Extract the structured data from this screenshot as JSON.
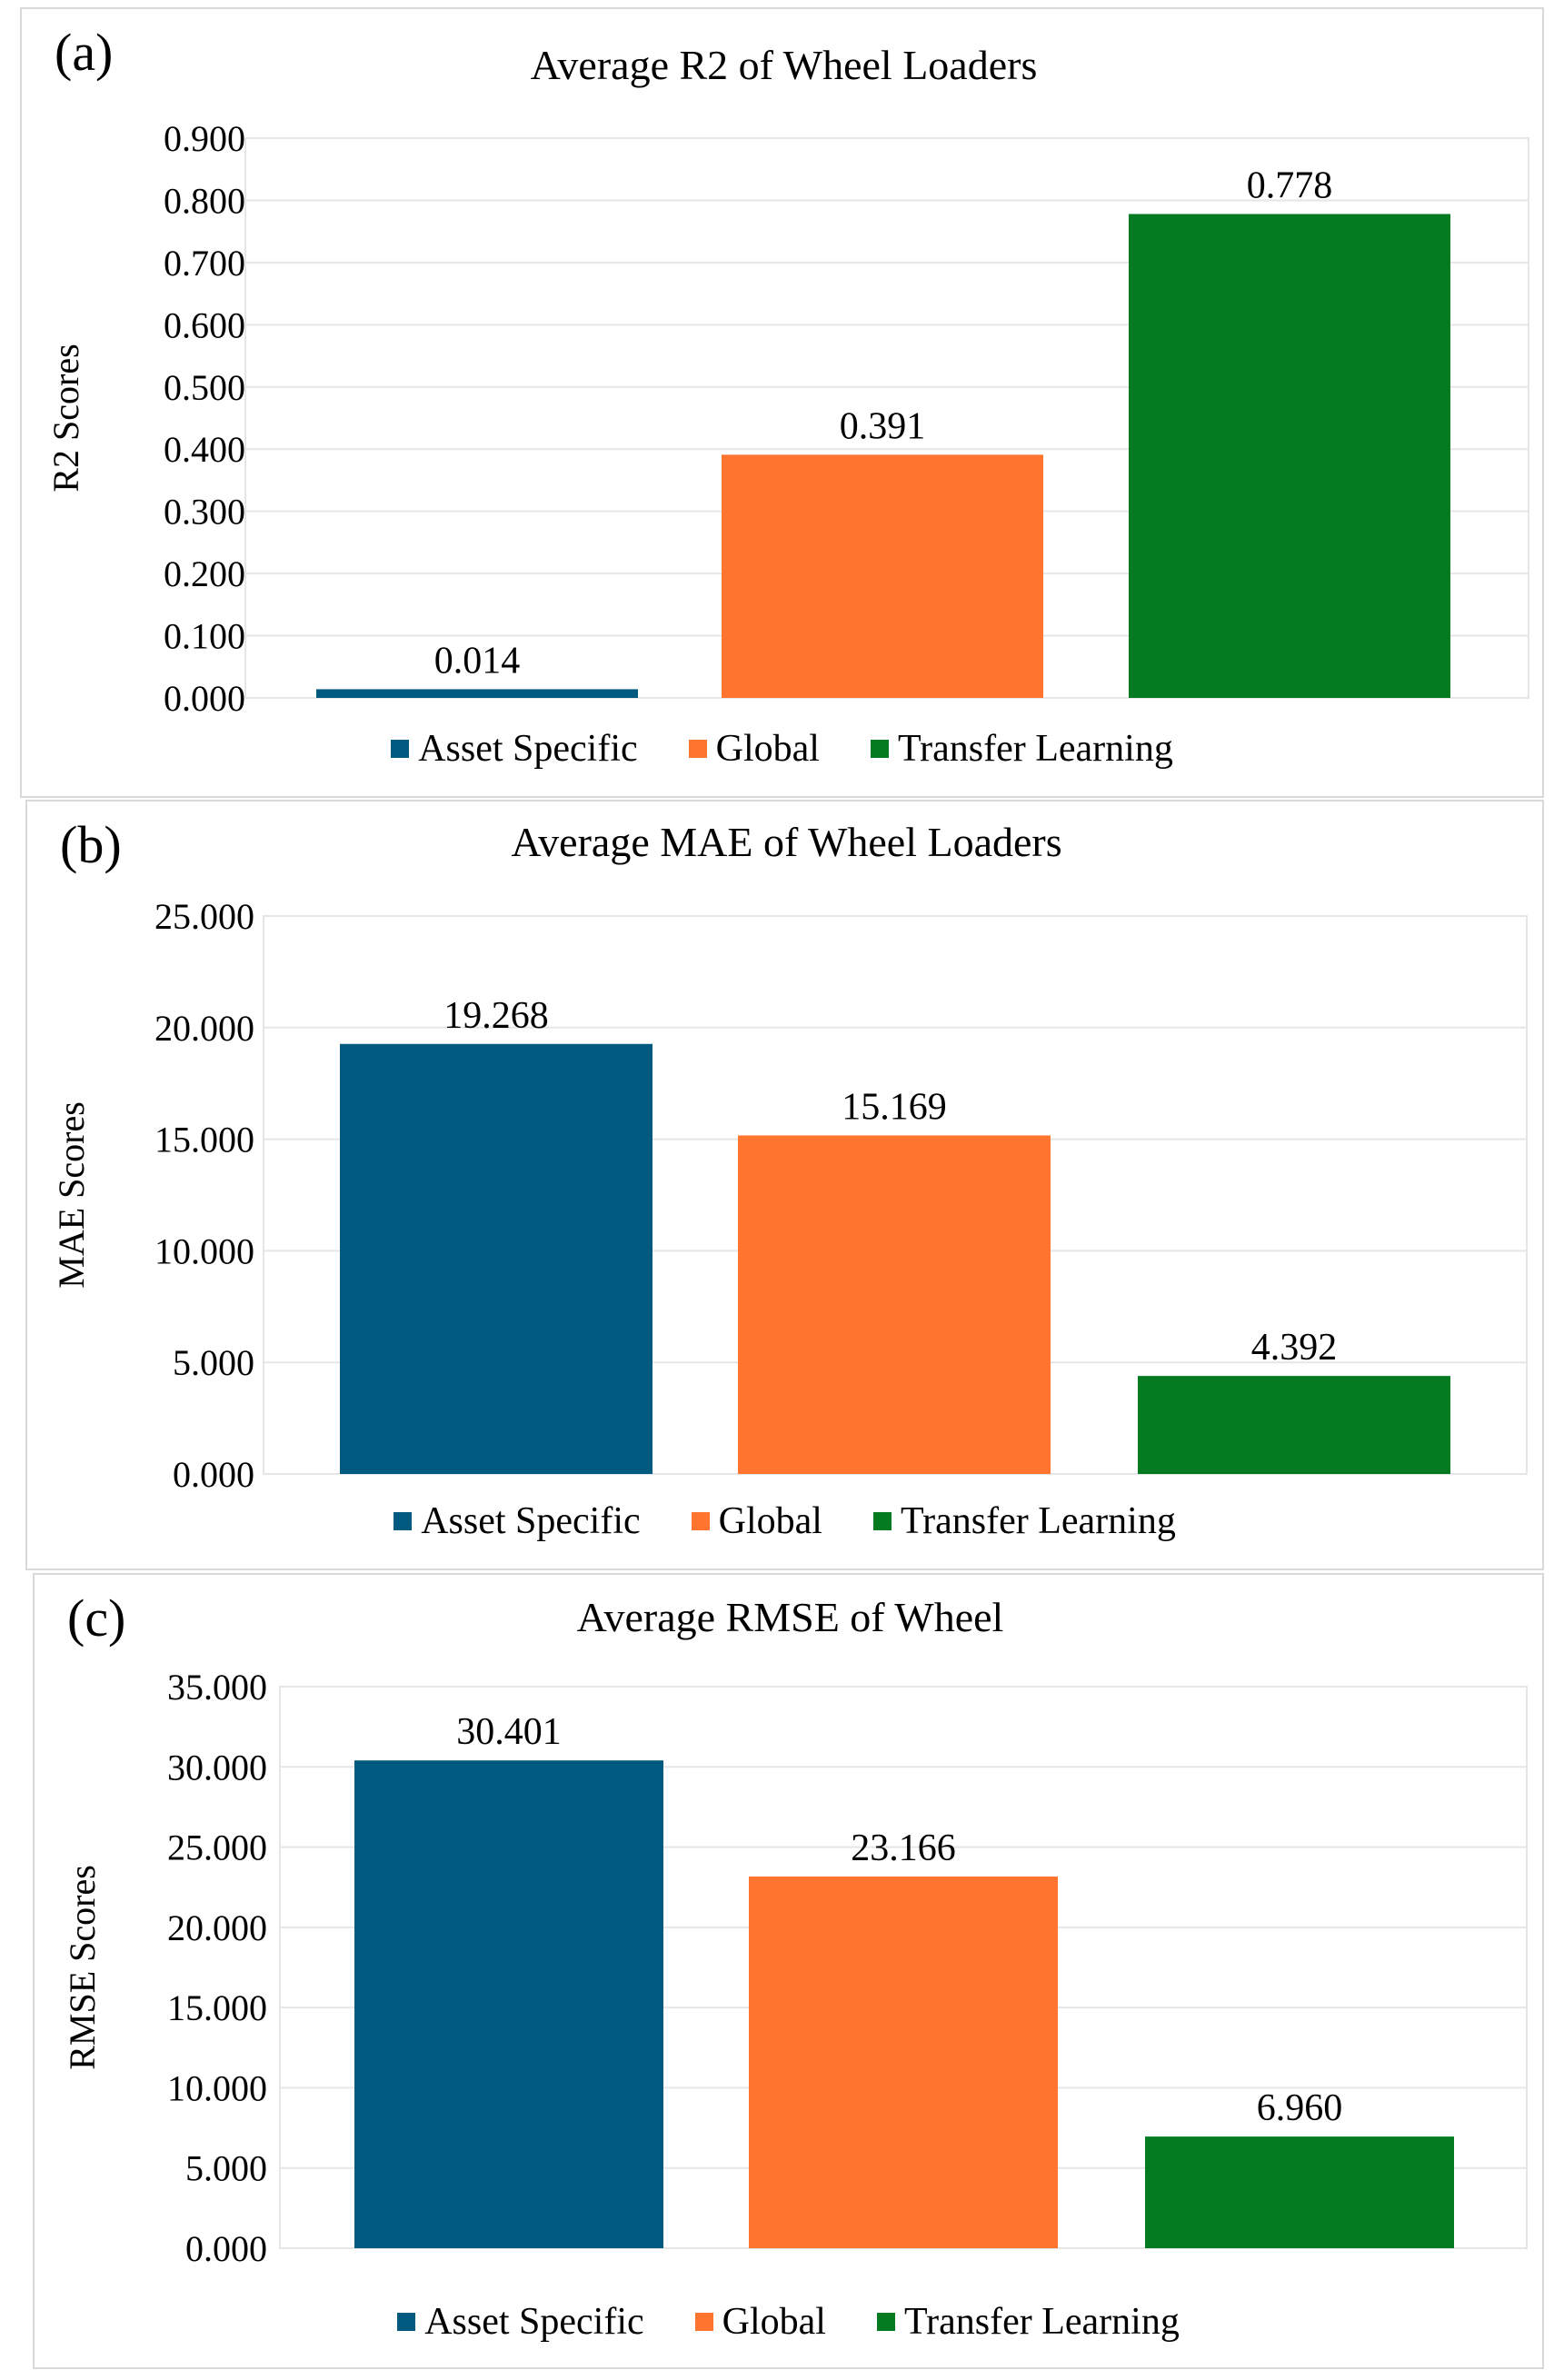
{
  "colors": {
    "asset_specific": "#005a80",
    "global": "#ff7530",
    "transfer_learning": "#047a21",
    "gridline": "#e6e6e6",
    "border": "#d9d9d9"
  },
  "chart_data": [
    {
      "type": "bar",
      "panel_label": "(a)",
      "title": "Average R2 of Wheel Loaders",
      "xlabel": "",
      "ylabel": "R2 Scores",
      "ylim": [
        0,
        0.9
      ],
      "yticks": [
        "0.000",
        "0.100",
        "0.200",
        "0.300",
        "0.400",
        "0.500",
        "0.600",
        "0.700",
        "0.800",
        "0.900"
      ],
      "grid": true,
      "legend_position": "bottom",
      "series": [
        {
          "name": "Asset Specific",
          "value": 0.014,
          "label": "0.014"
        },
        {
          "name": "Global",
          "value": 0.391,
          "label": "0.391"
        },
        {
          "name": "Transfer Learning",
          "value": 0.778,
          "label": "0.778"
        }
      ]
    },
    {
      "type": "bar",
      "panel_label": "(b)",
      "title": "Average MAE of Wheel Loaders",
      "xlabel": "",
      "ylabel": "MAE Scores",
      "ylim": [
        0,
        25
      ],
      "yticks": [
        "0.000",
        "5.000",
        "10.000",
        "15.000",
        "20.000",
        "25.000"
      ],
      "grid": true,
      "legend_position": "bottom",
      "series": [
        {
          "name": "Asset Specific",
          "value": 19.268,
          "label": "19.268"
        },
        {
          "name": "Global",
          "value": 15.169,
          "label": "15.169"
        },
        {
          "name": "Transfer Learning",
          "value": 4.392,
          "label": "4.392"
        }
      ]
    },
    {
      "type": "bar",
      "panel_label": "(c)",
      "title": "Average RMSE of Wheel",
      "xlabel": "",
      "ylabel": "RMSE Scores",
      "ylim": [
        0,
        35
      ],
      "yticks": [
        "0.000",
        "5.000",
        "10.000",
        "15.000",
        "20.000",
        "25.000",
        "30.000",
        "35.000"
      ],
      "grid": true,
      "legend_position": "bottom",
      "series": [
        {
          "name": "Asset Specific",
          "value": 30.401,
          "label": "30.401"
        },
        {
          "name": "Global",
          "value": 23.166,
          "label": "23.166"
        },
        {
          "name": "Transfer Learning",
          "value": 6.96,
          "label": "6.960"
        }
      ]
    }
  ]
}
